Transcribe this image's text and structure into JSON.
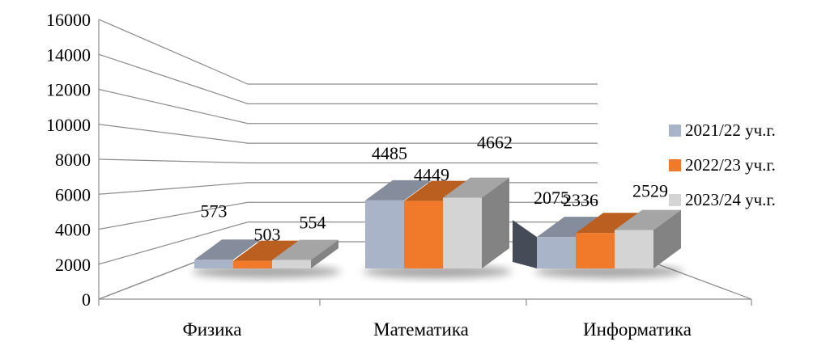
{
  "chart_data": {
    "type": "bar",
    "categories": [
      "Физика",
      "Математика",
      "Информатика"
    ],
    "series": [
      {
        "name": "2021/22 уч.г.",
        "values": [
          573,
          4485,
          2075
        ],
        "color": "#aab4c8"
      },
      {
        "name": "2022/23 уч.г.",
        "values": [
          503,
          4449,
          2336
        ],
        "color": "#f07a2a"
      },
      {
        "name": "2023/24 уч.г.",
        "values": [
          554,
          4662,
          2529
        ],
        "color": "#d4d4d4"
      }
    ],
    "y_ticks": [
      "0",
      "2000",
      "4000",
      "6000",
      "8000",
      "10000",
      "12000",
      "14000",
      "16000"
    ],
    "ylim": [
      0,
      16000
    ],
    "grid": true,
    "legend_position": "right",
    "style": "3d-perspective"
  }
}
